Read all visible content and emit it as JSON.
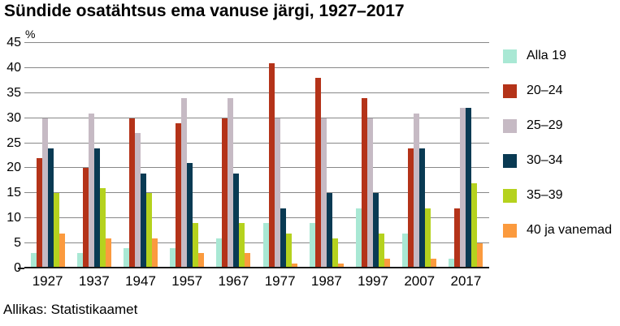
{
  "title": "Sündide osatähtsus ema vanuse järgi, 1927–2017",
  "source": "Allikas: Statistikaamet",
  "chart_data": {
    "type": "bar",
    "title": "Sündide osatähtsus ema vanuse järgi, 1927–2017",
    "unit_label": "%",
    "xlabel": "",
    "ylabel": "%",
    "ylim": [
      0,
      45
    ],
    "ytick_step": 5,
    "grid": true,
    "legend_position": "right",
    "categories": [
      "1927",
      "1937",
      "1947",
      "1957",
      "1967",
      "1977",
      "1987",
      "1997",
      "2007",
      "2017"
    ],
    "series": [
      {
        "name": "Alla 19",
        "color": "#a9e8d4",
        "values": [
          3,
          3,
          4,
          4,
          6,
          9,
          9,
          12,
          7,
          2
        ]
      },
      {
        "name": "20–24",
        "color": "#b43319",
        "values": [
          22,
          20,
          30,
          29,
          30,
          41,
          38,
          34,
          24,
          12
        ]
      },
      {
        "name": "25–29",
        "color": "#c6bac4",
        "values": [
          30,
          31,
          27,
          34,
          34,
          30,
          30,
          30,
          31,
          32
        ]
      },
      {
        "name": "30–34",
        "color": "#093a53",
        "values": [
          24,
          24,
          19,
          21,
          19,
          12,
          15,
          15,
          24,
          32
        ]
      },
      {
        "name": "35–39",
        "color": "#b5d21e",
        "values": [
          15,
          16,
          15,
          9,
          9,
          7,
          6,
          7,
          12,
          17
        ]
      },
      {
        "name": "40 ja vanemad",
        "color": "#fb9a3e",
        "values": [
          7,
          6,
          6,
          3,
          3,
          1,
          1,
          2,
          2,
          5
        ]
      }
    ],
    "grid_color": "#888888",
    "axis_color": "#1a1a1a"
  }
}
